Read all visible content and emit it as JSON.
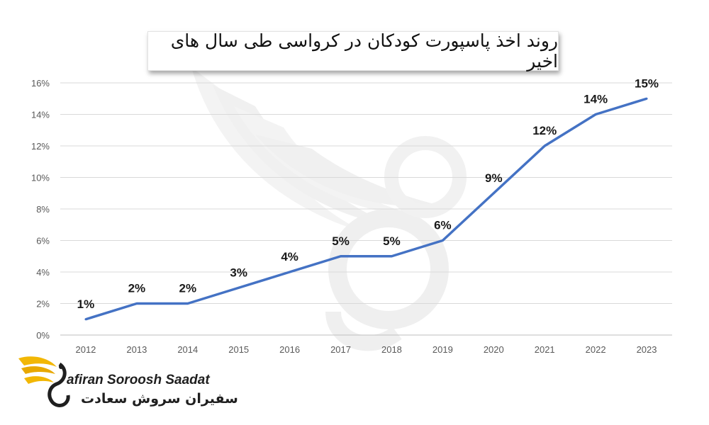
{
  "chart_data": {
    "type": "line",
    "title": "روند اخذ پاسپورت کودکان در کرواسی طی سال های اخیر",
    "xlabel": "",
    "ylabel": "",
    "categories": [
      "2012",
      "2013",
      "2014",
      "2015",
      "2016",
      "2017",
      "2018",
      "2019",
      "2020",
      "2021",
      "2022",
      "2023"
    ],
    "values": [
      1,
      2,
      2,
      3,
      4,
      5,
      5,
      6,
      9,
      12,
      14,
      15
    ],
    "data_labels": [
      "1%",
      "2%",
      "2%",
      "3%",
      "4%",
      "5%",
      "5%",
      "6%",
      "9%",
      "12%",
      "14%",
      "15%"
    ],
    "ylim": [
      0,
      16
    ],
    "y_ticks": [
      "0%",
      "2%",
      "4%",
      "6%",
      "8%",
      "10%",
      "12%",
      "14%",
      "16%"
    ],
    "grid": true,
    "line_color": "#4472c4"
  },
  "brand": {
    "name_en": "afiran Soroosh Saadat",
    "name_fa": "سفیران سروش سعادت",
    "logo_icon": "golden-wing-bird-icon",
    "accent_color": "#f2b705"
  }
}
